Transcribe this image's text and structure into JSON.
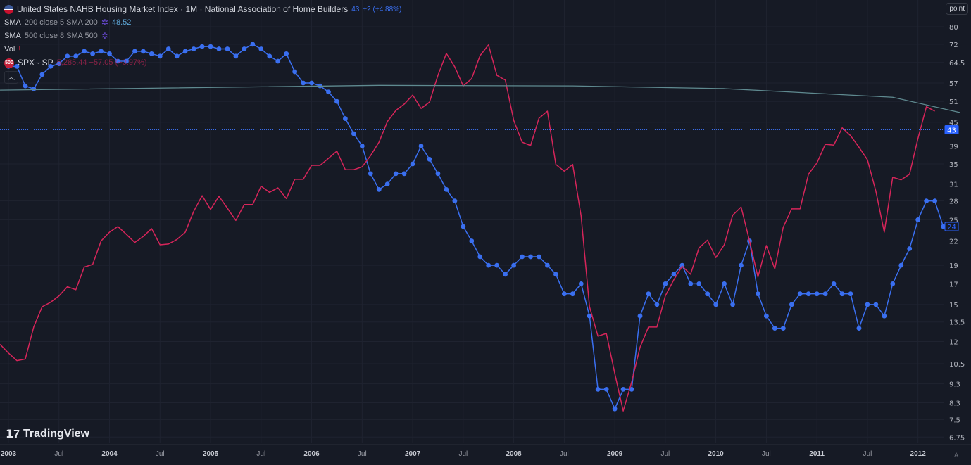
{
  "header": {
    "title": "United States NAHB Housing Market Index · 1M · National Association of Home Builders",
    "last_value": "43",
    "change": "+2 (+4.88%)",
    "indicators": [
      {
        "name": "SMA",
        "params": "200 close 5 SMA 200",
        "value": "48.52"
      },
      {
        "name": "SMA",
        "params": "500 close 8 SMA 500",
        "value": ""
      },
      {
        "name": "Vol",
        "params": "",
        "value": ""
      }
    ],
    "compare": {
      "badge": "500",
      "name": "SPX · SP",
      "value": "5,285.44 −57.05 (−0.97%)"
    }
  },
  "unit_button": "point",
  "auto_label": "A",
  "logo_text": "TradingView",
  "colors": {
    "background": "#161a25",
    "nahb": "#3a6ff0",
    "spx": "#d6255a",
    "sma200": "#5f8a90",
    "last_price_line": "#3a6ff0"
  },
  "chart_data": {
    "type": "line",
    "y_scale": "log",
    "ylim": [
      6.5,
      84
    ],
    "y_ticks": [
      "80",
      "72",
      "64.5",
      "57",
      "51",
      "45",
      "39",
      "35",
      "31",
      "28",
      "25",
      "22",
      "19",
      "17",
      "15",
      "13.5",
      "12",
      "10.5",
      "9.3",
      "8.3",
      "7.5",
      "6.75"
    ],
    "x_ticks": [
      "2003",
      "Jul",
      "2004",
      "Jul",
      "2005",
      "Jul",
      "2006",
      "Jul",
      "2007",
      "Jul",
      "2008",
      "Jul",
      "2009",
      "Jul",
      "2010",
      "Jul",
      "2011",
      "Jul",
      "2012"
    ],
    "x_range": [
      "2003-01",
      "2012-04"
    ],
    "frequency": "monthly",
    "series": [
      {
        "name": "United States NAHB Housing Market Index",
        "x_start": "2003-01",
        "markers": true,
        "values": [
          63,
          63,
          56,
          55,
          60,
          63,
          64,
          67,
          67,
          69,
          68,
          69,
          68,
          65,
          65,
          69,
          69,
          68,
          67,
          70,
          67,
          69,
          70,
          71,
          71,
          70,
          70,
          67,
          70,
          72,
          70,
          67,
          65,
          68,
          61,
          57,
          57,
          56,
          54,
          51,
          46,
          42,
          39,
          33,
          30,
          31,
          33,
          33,
          35,
          39,
          36,
          33,
          30,
          28,
          24,
          22,
          20,
          19,
          19,
          18,
          19,
          20,
          20,
          20,
          19,
          18,
          16,
          16,
          17,
          14,
          9,
          9,
          8,
          9,
          9,
          14,
          16,
          15,
          17,
          18,
          19,
          17,
          17,
          16,
          15,
          17,
          15,
          19,
          22,
          16,
          14,
          13,
          13,
          15,
          16,
          16,
          16,
          16,
          17,
          16,
          16,
          13,
          15,
          15,
          14,
          17,
          19,
          21,
          25,
          28,
          28,
          24
        ]
      },
      {
        "name": "SPX · SP",
        "x_start": "2002-12",
        "markers": false,
        "values": [
          11.8,
          11.2,
          10.7,
          10.8,
          13.1,
          14.8,
          15.2,
          15.8,
          16.7,
          16.4,
          18.8,
          19.1,
          22.0,
          23.2,
          24.0,
          22.9,
          21.8,
          22.6,
          23.7,
          21.5,
          21.6,
          22.2,
          23.2,
          26.3,
          28.9,
          26.6,
          28.8,
          26.8,
          24.9,
          27.4,
          27.4,
          30.6,
          29.5,
          30.3,
          28.4,
          31.9,
          31.9,
          34.7,
          34.7,
          36.2,
          37.8,
          33.8,
          33.8,
          34.4,
          36.8,
          39.9,
          45.2,
          48.3,
          50.2,
          53.0,
          48.9,
          50.8,
          59.7,
          68.1,
          62.8,
          56.0,
          58.5,
          67.2,
          71.7,
          59.7,
          58.0,
          45.5,
          39.9,
          39.1,
          46.1,
          48.1,
          34.9,
          33.5,
          34.9,
          25.6,
          14.8,
          12.4,
          12.6,
          9.9,
          7.9,
          9.4,
          11.6,
          13.1,
          13.1,
          15.8,
          17.4,
          18.9,
          18.0,
          21.1,
          22.1,
          19.9,
          21.5,
          25.7,
          27.0,
          22.0,
          17.7,
          21.4,
          18.6,
          23.9,
          26.7,
          26.7,
          32.9,
          35.2,
          39.4,
          39.2,
          43.5,
          41.5,
          38.7,
          35.9,
          29.7,
          23.2,
          32.3,
          31.8,
          32.9,
          40.8,
          49.4,
          48.1
        ]
      },
      {
        "name": "SMA 200",
        "x": [
          "2002-12",
          "2006-09",
          "2008-08",
          "2010-02",
          "2011-10",
          "2012-06"
        ],
        "values": [
          54.6,
          56.2,
          56.0,
          55.1,
          52.3,
          47.7
        ]
      }
    ],
    "price_labels": [
      {
        "value": "43",
        "style": "filled"
      },
      {
        "value": "24",
        "style": "outline"
      }
    ],
    "grid": true
  }
}
